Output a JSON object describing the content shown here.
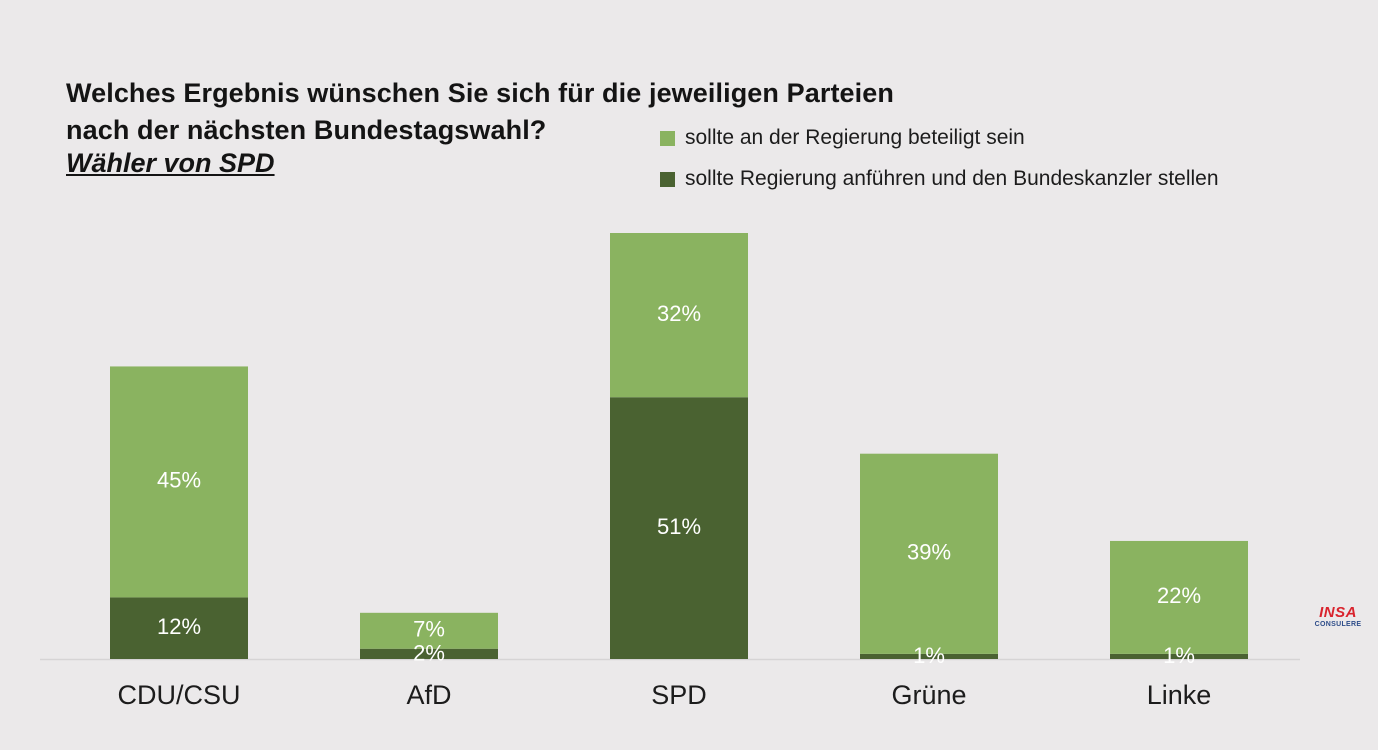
{
  "chart_data": {
    "type": "bar",
    "stacked": true,
    "title": "Welches Ergebnis wünschen Sie sich für die jeweiligen Parteien nach der nächsten Bundestagswahl?",
    "title_lines": [
      "Welches Ergebnis wünschen Sie sich für die jeweiligen Parteien",
      "nach der nächsten Bundestagswahl?"
    ],
    "subtitle": "Wähler von SPD",
    "xlabel": "",
    "ylabel": "",
    "ylim": [
      0,
      83
    ],
    "grid": false,
    "legend_position": "top-right",
    "categories": [
      "CDU/CSU",
      "AfD",
      "SPD",
      "Grüne",
      "Linke"
    ],
    "series": [
      {
        "name": "sollte Regierung anführen und den Bundeskanzler stellen",
        "color": "#4a6231",
        "values": [
          12,
          2,
          51,
          1,
          1
        ],
        "labels": [
          "12%",
          "2%",
          "51%",
          "1%",
          "1%"
        ]
      },
      {
        "name": "sollte an der Regierung beteiligt sein",
        "color": "#8ab360",
        "values": [
          45,
          7,
          32,
          39,
          22
        ],
        "labels": [
          "45%",
          "7%",
          "32%",
          "39%",
          "22%"
        ]
      }
    ],
    "legend_order": [
      1,
      0
    ]
  },
  "colors": {
    "background": "#ebe9ea",
    "light_green": "#8ab360",
    "dark_green": "#4a6231",
    "baseline": "#d6d4d5"
  },
  "logo": {
    "name": "INSA",
    "subtitle": "CONSULERE"
  }
}
